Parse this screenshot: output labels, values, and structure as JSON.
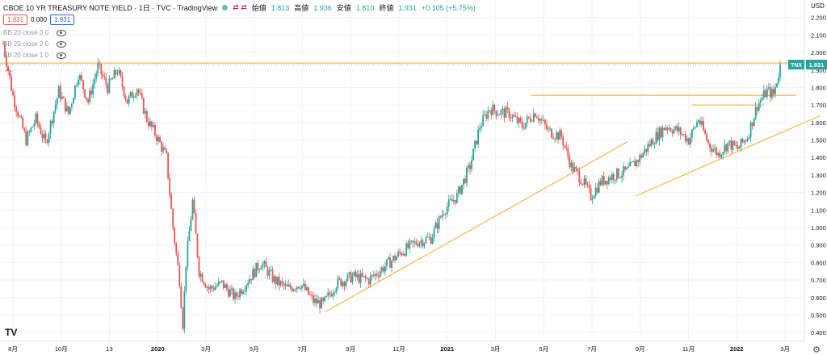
{
  "header": {
    "symbol": "CBOE 10 YR TREASURY NOTE YIELD · 1日 · TVC · TradingView",
    "controls": "⇄ ⇄",
    "ohlc": [
      {
        "k": "始値",
        "v": "1.813"
      },
      {
        "k": "高値",
        "v": "1.936"
      },
      {
        "k": "安値",
        "v": "1.810"
      },
      {
        "k": "終値",
        "v": "1.931"
      },
      {
        "k": "",
        "v": "+0.105 (+5.75%)"
      }
    ]
  },
  "price_boxes": {
    "bid": "1.931",
    "spread": "0.000",
    "ask": "1.931"
  },
  "indicators": [
    "BB 20 close 3 0",
    "BB 20 close 2 0",
    "BB 20 close 1 0"
  ],
  "currency": "USD",
  "logo": "TV",
  "icons": {
    "eye": "eye-icon",
    "settings": "gear-icon",
    "collapse": "chevron-up-icon"
  },
  "colors": {
    "up": "#26a69a",
    "down": "#ef5350",
    "trendline": "#ffa726",
    "badge": "#26a69a"
  },
  "chart_data": {
    "type": "candlestick",
    "title": "CBOE 10 YR TREASURY NOTE YIELD",
    "ylim": [
      0.35,
      2.3
    ],
    "y_ticks": [
      "0.400",
      "0.500",
      "0.600",
      "0.700",
      "0.800",
      "0.900",
      "1.000",
      "1.100",
      "1.200",
      "1.300",
      "1.400",
      "1.500",
      "1.600",
      "1.700",
      "1.800",
      "1.900",
      "2.000",
      "2.100",
      "2.200"
    ],
    "x_ticks": [
      "8月",
      "10月",
      "13",
      "2020",
      "3月",
      "5月",
      "7月",
      "9月",
      "11月",
      "2021",
      "3月",
      "5月",
      "7月",
      "9月",
      "11月",
      "2022",
      "3月"
    ],
    "last_price_label": "TNX",
    "last_price": 1.931,
    "trend_shape": [
      [
        0,
        2.05
      ],
      [
        6,
        1.75
      ],
      [
        14,
        1.5
      ],
      [
        20,
        1.62
      ],
      [
        26,
        1.48
      ],
      [
        34,
        1.78
      ],
      [
        40,
        1.65
      ],
      [
        46,
        1.88
      ],
      [
        52,
        1.72
      ],
      [
        58,
        1.92
      ],
      [
        64,
        1.8
      ],
      [
        70,
        1.9
      ],
      [
        76,
        1.72
      ],
      [
        82,
        1.8
      ],
      [
        88,
        1.62
      ],
      [
        94,
        1.52
      ],
      [
        100,
        1.4
      ],
      [
        104,
        1.0
      ],
      [
        108,
        0.7
      ],
      [
        110,
        0.45
      ],
      [
        112,
        0.8
      ],
      [
        116,
        1.15
      ],
      [
        120,
        0.75
      ],
      [
        126,
        0.65
      ],
      [
        134,
        0.68
      ],
      [
        142,
        0.6
      ],
      [
        150,
        0.7
      ],
      [
        158,
        0.8
      ],
      [
        166,
        0.7
      ],
      [
        174,
        0.65
      ],
      [
        182,
        0.68
      ],
      [
        190,
        0.58
      ],
      [
        196,
        0.56
      ],
      [
        204,
        0.68
      ],
      [
        214,
        0.72
      ],
      [
        224,
        0.7
      ],
      [
        234,
        0.78
      ],
      [
        244,
        0.86
      ],
      [
        254,
        0.92
      ],
      [
        262,
        0.94
      ],
      [
        270,
        1.1
      ],
      [
        278,
        1.18
      ],
      [
        286,
        1.35
      ],
      [
        292,
        1.58
      ],
      [
        298,
        1.68
      ],
      [
        304,
        1.66
      ],
      [
        310,
        1.65
      ],
      [
        318,
        1.58
      ],
      [
        326,
        1.66
      ],
      [
        334,
        1.55
      ],
      [
        342,
        1.52
      ],
      [
        348,
        1.35
      ],
      [
        354,
        1.28
      ],
      [
        360,
        1.18
      ],
      [
        366,
        1.26
      ],
      [
        374,
        1.3
      ],
      [
        382,
        1.32
      ],
      [
        390,
        1.4
      ],
      [
        398,
        1.5
      ],
      [
        406,
        1.58
      ],
      [
        414,
        1.55
      ],
      [
        420,
        1.5
      ],
      [
        426,
        1.62
      ],
      [
        432,
        1.48
      ],
      [
        438,
        1.42
      ],
      [
        444,
        1.48
      ],
      [
        450,
        1.45
      ],
      [
        456,
        1.52
      ],
      [
        462,
        1.7
      ],
      [
        468,
        1.78
      ],
      [
        472,
        1.76
      ],
      [
        476,
        1.92
      ]
    ],
    "horizontal_lines": [
      {
        "price": 1.94,
        "x_start": 0,
        "x_end": 1
      },
      {
        "price": 1.755,
        "x_start": 0.66,
        "x_end": 0.99
      },
      {
        "price": 1.7,
        "x_start": 0.86,
        "x_end": 0.95
      }
    ],
    "trend_lines": [
      {
        "from": [
          0.405,
          0.52
        ],
        "to": [
          0.78,
          1.49
        ]
      },
      {
        "from": [
          0.79,
          1.18
        ],
        "to": [
          1.02,
          1.64
        ]
      }
    ]
  }
}
